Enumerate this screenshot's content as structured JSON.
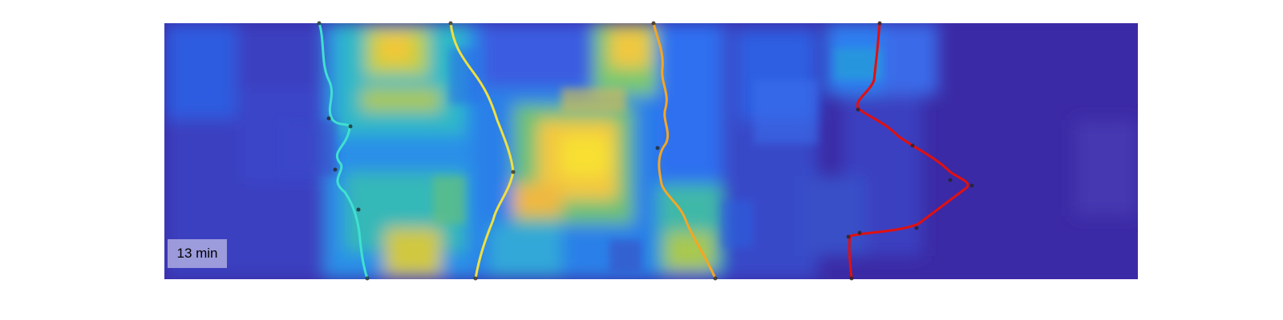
{
  "time_label": "13 min",
  "colors": {
    "background_low": "#3b2aa5",
    "blue_mid": "#2f6ff0",
    "cyan": "#17b3d8",
    "green": "#4ec07a",
    "yellow": "#f5d635",
    "line_1": "#40e0d0",
    "line_2": "#f0e040",
    "line_3": "#f5a623",
    "line_4": "#e01010"
  },
  "traces": [
    {
      "name": "trace-cyan",
      "color": "#40e0d0"
    },
    {
      "name": "trace-yellow",
      "color": "#f0e040"
    },
    {
      "name": "trace-orange",
      "color": "#f5a623"
    },
    {
      "name": "trace-red",
      "color": "#e01010"
    }
  ]
}
